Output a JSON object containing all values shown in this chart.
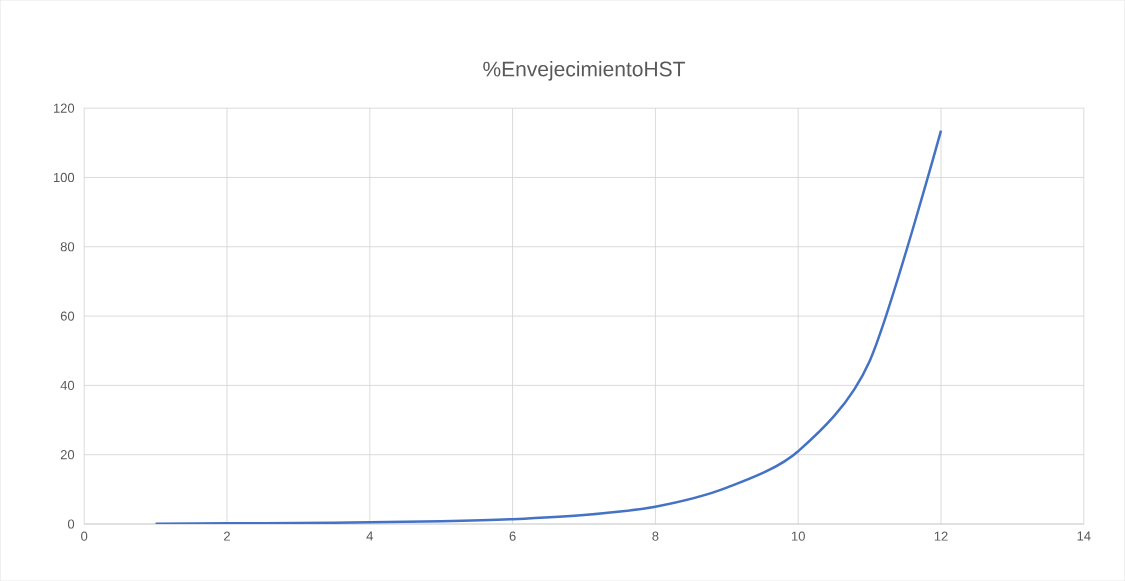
{
  "chart_data": {
    "type": "line",
    "title": "%EnvejecimientoHST",
    "x": [
      1,
      2,
      3,
      4,
      5,
      6,
      7,
      8,
      9,
      10,
      11,
      12
    ],
    "series": [
      {
        "color": "#4472c4",
        "values": [
          0.1,
          0.2,
          0.3,
          0.5,
          0.8,
          1.4,
          2.6,
          5,
          10.5,
          21,
          47,
          113.5
        ]
      }
    ],
    "xlim": [
      0,
      14
    ],
    "xticks": [
      0,
      2,
      4,
      6,
      8,
      10,
      12,
      14
    ],
    "ylim": [
      0,
      120
    ],
    "yticks": [
      0,
      20,
      40,
      60,
      80,
      100,
      120
    ],
    "grid": true,
    "marker": "none",
    "line_style": "solid"
  }
}
